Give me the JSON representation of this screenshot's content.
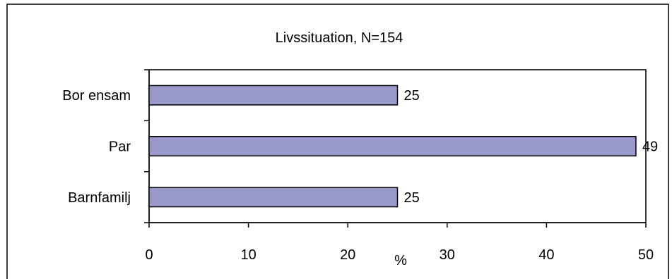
{
  "chart_data": {
    "type": "bar",
    "orientation": "horizontal",
    "title": "Livssituation, N=154",
    "xlabel": "%",
    "ylabel": "",
    "categories": [
      "Bor ensam",
      "Par",
      "Barnfamilj"
    ],
    "values": [
      25,
      49,
      25
    ],
    "data_labels": [
      "25",
      "49",
      "25"
    ],
    "xlim": [
      0,
      50
    ],
    "xticks": [
      0,
      10,
      20,
      30,
      40,
      50
    ],
    "xtick_labels": [
      "0",
      "10",
      "20",
      "30",
      "40",
      "50"
    ],
    "grid": false,
    "legend": "none",
    "bar_color": "#9999cc"
  }
}
